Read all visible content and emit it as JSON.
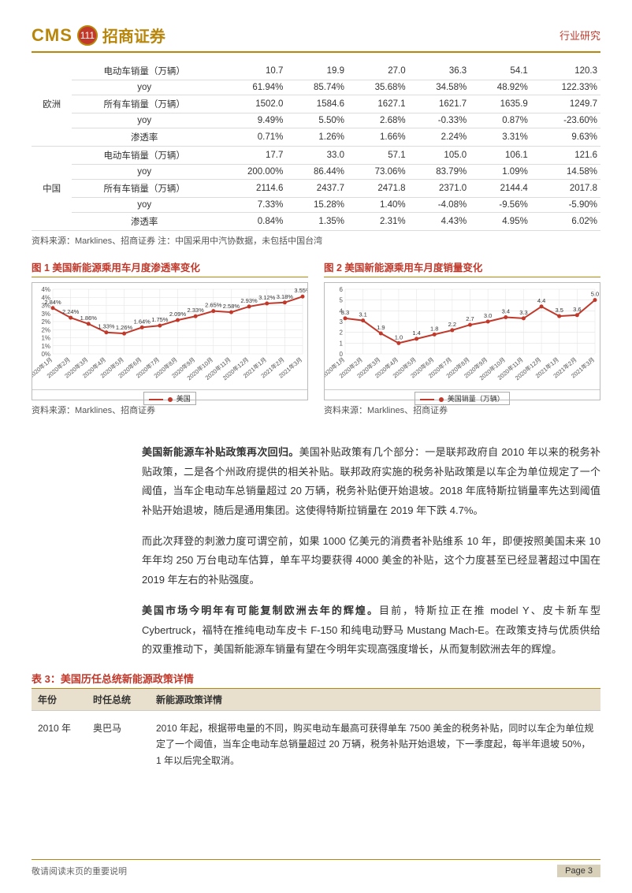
{
  "header": {
    "logo_cms": "CMS",
    "logo_badge": "111",
    "logo_cn": "招商证券",
    "top_right": "行业研究"
  },
  "table1": {
    "regions": [
      {
        "name": "欧洲",
        "rows": [
          {
            "label": "电动车销量（万辆）",
            "v": [
              "10.7",
              "19.9",
              "27.0",
              "36.3",
              "54.1",
              "120.3"
            ]
          },
          {
            "label": "yoy",
            "v": [
              "61.94%",
              "85.74%",
              "35.68%",
              "34.58%",
              "48.92%",
              "122.33%"
            ]
          },
          {
            "label": "所有车销量（万辆）",
            "v": [
              "1502.0",
              "1584.6",
              "1627.1",
              "1621.7",
              "1635.9",
              "1249.7"
            ]
          },
          {
            "label": "yoy",
            "v": [
              "9.49%",
              "5.50%",
              "2.68%",
              "-0.33%",
              "0.87%",
              "-23.60%"
            ]
          },
          {
            "label": "渗透率",
            "v": [
              "0.71%",
              "1.26%",
              "1.66%",
              "2.24%",
              "3.31%",
              "9.63%"
            ]
          }
        ]
      },
      {
        "name": "中国",
        "rows": [
          {
            "label": "电动车销量（万辆）",
            "v": [
              "17.7",
              "33.0",
              "57.1",
              "105.0",
              "106.1",
              "121.6"
            ]
          },
          {
            "label": "yoy",
            "v": [
              "200.00%",
              "86.44%",
              "73.06%",
              "83.79%",
              "1.09%",
              "14.58%"
            ]
          },
          {
            "label": "所有车销量（万辆）",
            "v": [
              "2114.6",
              "2437.7",
              "2471.8",
              "2371.0",
              "2144.4",
              "2017.8"
            ]
          },
          {
            "label": "yoy",
            "v": [
              "7.33%",
              "15.28%",
              "1.40%",
              "-4.08%",
              "-9.56%",
              "-5.90%"
            ]
          },
          {
            "label": "渗透率",
            "v": [
              "0.84%",
              "1.35%",
              "2.31%",
              "4.43%",
              "4.95%",
              "6.02%"
            ]
          }
        ]
      }
    ],
    "source": "资料来源：Marklines、招商证券  注：中国采用中汽协数据，未包括中国台湾"
  },
  "chart1": {
    "title": "图 1  美国新能源乘用车月度渗透率变化",
    "source": "资料来源：Marklines、招商证券",
    "legend": "美国",
    "type": "line",
    "line_color": "#c0392b",
    "grid_color": "#e2e2e2",
    "background_color": "#ffffff",
    "xlabels": [
      "2020年1月",
      "2020年2月",
      "2020年3月",
      "2020年4月",
      "2020年5月",
      "2020年6月",
      "2020年7月",
      "2020年8月",
      "2020年9月",
      "2020年10月",
      "2020年11月",
      "2020年12月",
      "2021年1月",
      "2021年2月",
      "2021年3月"
    ],
    "ylabels": [
      "0%",
      "1%",
      "1%",
      "2%",
      "2%",
      "3%",
      "3%",
      "4%",
      "4%"
    ],
    "ylim": [
      0,
      4
    ],
    "y_values": [
      2.84,
      2.24,
      1.86,
      1.33,
      1.26,
      1.64,
      1.75,
      2.09,
      2.33,
      2.65,
      2.58,
      2.93,
      3.12,
      3.18,
      3.55
    ],
    "point_labels": [
      "2.84%",
      "2.24%",
      "1.86%",
      "1.33%",
      "1.26%",
      "1.64%",
      "1.75%",
      "2.09%",
      "2.33%",
      "2.65%",
      "2.58%",
      "2.93%",
      "3.12%",
      "3.18%",
      "3.55%"
    ]
  },
  "chart2": {
    "title": "图 2  美国新能源乘用车月度销量变化",
    "source": "资料来源：Marklines、招商证券",
    "legend": "美国销量（万辆）",
    "type": "line",
    "line_color": "#c0392b",
    "grid_color": "#e2e2e2",
    "background_color": "#ffffff",
    "xlabels": [
      "2020年1月",
      "2020年2月",
      "2020年3月",
      "2020年4月",
      "2020年5月",
      "2020年6月",
      "2020年7月",
      "2020年8月",
      "2020年9月",
      "2020年10月",
      "2020年11月",
      "2020年12月",
      "2021年1月",
      "2021年2月",
      "2021年3月"
    ],
    "ylabels": [
      "0",
      "1",
      "2",
      "3",
      "4",
      "5",
      "6"
    ],
    "ylim": [
      0,
      6
    ],
    "y_values": [
      3.3,
      3.1,
      1.9,
      1.0,
      1.4,
      1.8,
      2.2,
      2.7,
      3.0,
      3.4,
      3.3,
      4.4,
      3.5,
      3.6,
      5.0
    ],
    "point_labels": [
      "3.3",
      "3.1",
      "1.9",
      "1.0",
      "1.4",
      "1.8",
      "2.2",
      "2.7",
      "3.0",
      "3.4",
      "3.3",
      "4.4",
      "3.5",
      "3.6",
      "5.0"
    ]
  },
  "body": {
    "p1": "美国新能源车补贴政策再次回归。美国补贴政策有几个部分：一是联邦政府自 2010 年以来的税务补贴政策，二是各个州政府提供的相关补贴。联邦政府实施的税务补贴政策是以车企为单位规定了一个阈值，当车企电动车总销量超过 20 万辆，税务补贴便开始退坡。2018 年底特斯拉销量率先达到阈值补贴开始退坡，随后是通用集团。这使得特斯拉销量在 2019 年下跌 4.7%。",
    "p2": "而此次拜登的刺激力度可谓空前，如果 1000 亿美元的消费者补贴维系 10 年，即便按照美国未来 10 年年均 250 万台电动车估算，单车平均要获得 4000 美金的补贴，这个力度甚至已经显著超过中国在 2019 年左右的补贴强度。",
    "p3": "美国市场今明年有可能复制欧洲去年的辉煌。目前，特斯拉正在推 model Y、皮卡新车型 Cybertruck，福特在推纯电动车皮卡 F-150 和纯电动野马 Mustang Mach-E。在政策支持与优质供给的双重推动下，美国新能源车销量有望在今明年实现高强度增长，从而复制欧洲去年的辉煌。"
  },
  "table3": {
    "title": "表 3：美国历任总统新能源政策详情",
    "headers": [
      "年份",
      "时任总统",
      "新能源政策详情"
    ],
    "rows": [
      {
        "year": "2010 年",
        "president": "奥巴马",
        "detail": "2010 年起，根据带电量的不同，购买电动车最高可获得单车 7500 美金的税务补贴，同时以车企为单位规定了一个阈值，当车企电动车总销量超过 20 万辆，税务补贴开始退坡，下一季度起，每半年退坡 50%，1 年以后完全取消。"
      }
    ]
  },
  "footer": {
    "note": "敬请阅读末页的重要说明",
    "page": "Page 3"
  }
}
